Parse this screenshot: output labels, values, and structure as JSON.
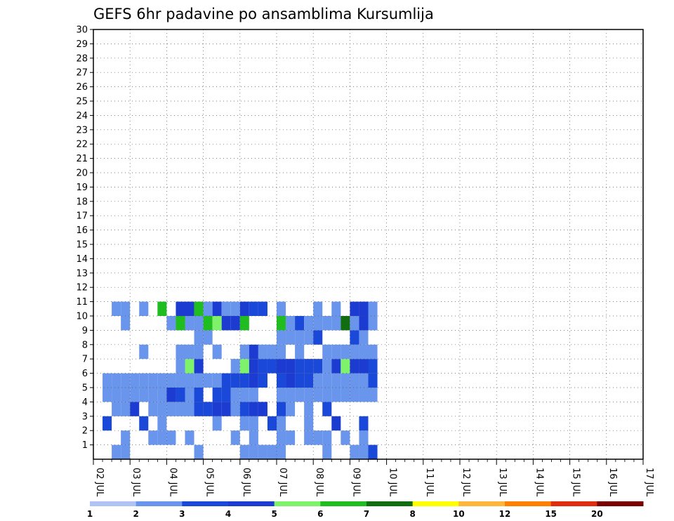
{
  "chart_data": {
    "type": "heatmap",
    "title": "GEFS 6hr padavine po ansamblima Kursumlija",
    "xlabel": "",
    "ylabel": "",
    "x_ticks": [
      "02 JUL",
      "03 JUL",
      "04 JUL",
      "05 JUL",
      "06 JUL",
      "07 JUL",
      "08 JUL",
      "09 JUL",
      "10 JUL",
      "11 JUL",
      "12 JUL",
      "13 JUL",
      "14 JUL",
      "15 JUL",
      "16 JUL",
      "17 JUL"
    ],
    "y_ticks": [
      "1",
      "2",
      "3",
      "4",
      "5",
      "6",
      "7",
      "8",
      "9",
      "10",
      "11",
      "12",
      "13",
      "14",
      "15",
      "16",
      "17",
      "18",
      "19",
      "20",
      "21",
      "22",
      "23",
      "24",
      "25",
      "26",
      "27",
      "28",
      "29",
      "30"
    ],
    "xlim": [
      "02 JUL",
      "17 JUL"
    ],
    "ylim": [
      0,
      30
    ],
    "grid": true,
    "colorbar": {
      "labels": [
        "1",
        "2",
        "3",
        "4",
        "5",
        "6",
        "7",
        "8",
        "10",
        "12",
        "15",
        "20"
      ],
      "colors": [
        "#afc4f4",
        "#6a95ec",
        "#1a48d9",
        "#1c3bd0",
        "#7df26a",
        "#1fbd1f",
        "#106e10",
        "#ffff00",
        "#ffb63a",
        "#ff7f00",
        "#e02d10",
        "#7a0000"
      ]
    },
    "points": [
      [
        2,
        1,
        1
      ],
      [
        3,
        1,
        1
      ],
      [
        11,
        1,
        1
      ],
      [
        16,
        1,
        1
      ],
      [
        17,
        1,
        1
      ],
      [
        18,
        1,
        1
      ],
      [
        19,
        1,
        1
      ],
      [
        20,
        1,
        1
      ],
      [
        25,
        1,
        1
      ],
      [
        28,
        1,
        1
      ],
      [
        29,
        1,
        1
      ],
      [
        30,
        1,
        2
      ],
      [
        3,
        2,
        1
      ],
      [
        6,
        2,
        1
      ],
      [
        7,
        2,
        1
      ],
      [
        8,
        2,
        1
      ],
      [
        10,
        2,
        1
      ],
      [
        15,
        2,
        1
      ],
      [
        17,
        2,
        1
      ],
      [
        20,
        2,
        1
      ],
      [
        21,
        2,
        1
      ],
      [
        23,
        2,
        1
      ],
      [
        24,
        2,
        1
      ],
      [
        25,
        2,
        1
      ],
      [
        27,
        2,
        1
      ],
      [
        29,
        2,
        1
      ],
      [
        1,
        3,
        2
      ],
      [
        5,
        3,
        2
      ],
      [
        7,
        3,
        1
      ],
      [
        13,
        3,
        1
      ],
      [
        16,
        3,
        1
      ],
      [
        17,
        3,
        1
      ],
      [
        19,
        3,
        2
      ],
      [
        20,
        3,
        1
      ],
      [
        23,
        3,
        1
      ],
      [
        26,
        3,
        3
      ],
      [
        29,
        3,
        2
      ],
      [
        2,
        4,
        1
      ],
      [
        3,
        4,
        1
      ],
      [
        4,
        4,
        3
      ],
      [
        6,
        4,
        1
      ],
      [
        7,
        4,
        1
      ],
      [
        8,
        4,
        1
      ],
      [
        9,
        4,
        1
      ],
      [
        10,
        4,
        1
      ],
      [
        11,
        4,
        2
      ],
      [
        12,
        4,
        2
      ],
      [
        13,
        4,
        3
      ],
      [
        14,
        4,
        3
      ],
      [
        15,
        4,
        1
      ],
      [
        16,
        4,
        2
      ],
      [
        17,
        4,
        3
      ],
      [
        18,
        4,
        3
      ],
      [
        20,
        4,
        2
      ],
      [
        21,
        4,
        1
      ],
      [
        23,
        4,
        1
      ],
      [
        25,
        4,
        2
      ],
      [
        1,
        5,
        1
      ],
      [
        2,
        5,
        1
      ],
      [
        3,
        5,
        1
      ],
      [
        4,
        5,
        1
      ],
      [
        5,
        5,
        1
      ],
      [
        6,
        5,
        1
      ],
      [
        7,
        5,
        1
      ],
      [
        8,
        5,
        3
      ],
      [
        9,
        5,
        2
      ],
      [
        10,
        5,
        1
      ],
      [
        11,
        5,
        2
      ],
      [
        13,
        5,
        2
      ],
      [
        14,
        5,
        2
      ],
      [
        15,
        5,
        1
      ],
      [
        16,
        5,
        1
      ],
      [
        17,
        5,
        1
      ],
      [
        20,
        5,
        1
      ],
      [
        21,
        5,
        1
      ],
      [
        22,
        5,
        1
      ],
      [
        23,
        5,
        1
      ],
      [
        24,
        5,
        1
      ],
      [
        25,
        5,
        1
      ],
      [
        26,
        5,
        1
      ],
      [
        27,
        5,
        1
      ],
      [
        28,
        5,
        1
      ],
      [
        29,
        5,
        1
      ],
      [
        30,
        5,
        1
      ],
      [
        1,
        6,
        1
      ],
      [
        2,
        6,
        1
      ],
      [
        3,
        6,
        1
      ],
      [
        4,
        6,
        1
      ],
      [
        5,
        6,
        1
      ],
      [
        6,
        6,
        1
      ],
      [
        7,
        6,
        1
      ],
      [
        8,
        6,
        1
      ],
      [
        9,
        6,
        1
      ],
      [
        10,
        6,
        1
      ],
      [
        11,
        6,
        1
      ],
      [
        12,
        6,
        1
      ],
      [
        13,
        6,
        1
      ],
      [
        14,
        6,
        2
      ],
      [
        15,
        6,
        2
      ],
      [
        16,
        6,
        2
      ],
      [
        17,
        6,
        3
      ],
      [
        18,
        6,
        2
      ],
      [
        20,
        6,
        2
      ],
      [
        21,
        6,
        3
      ],
      [
        22,
        6,
        2
      ],
      [
        23,
        6,
        2
      ],
      [
        24,
        6,
        1
      ],
      [
        25,
        6,
        1
      ],
      [
        26,
        6,
        1
      ],
      [
        27,
        6,
        1
      ],
      [
        28,
        6,
        1
      ],
      [
        29,
        6,
        1
      ],
      [
        30,
        6,
        2
      ],
      [
        9,
        7,
        1
      ],
      [
        10,
        7,
        4
      ],
      [
        11,
        7,
        3
      ],
      [
        15,
        7,
        1
      ],
      [
        16,
        7,
        4
      ],
      [
        17,
        7,
        3
      ],
      [
        18,
        7,
        2
      ],
      [
        19,
        7,
        2
      ],
      [
        20,
        7,
        3
      ],
      [
        21,
        7,
        3
      ],
      [
        22,
        7,
        2
      ],
      [
        23,
        7,
        2
      ],
      [
        24,
        7,
        2
      ],
      [
        25,
        7,
        1
      ],
      [
        26,
        7,
        3
      ],
      [
        27,
        7,
        4
      ],
      [
        28,
        7,
        3
      ],
      [
        29,
        7,
        3
      ],
      [
        30,
        7,
        2
      ],
      [
        5,
        8,
        1
      ],
      [
        9,
        8,
        1
      ],
      [
        10,
        8,
        1
      ],
      [
        11,
        8,
        1
      ],
      [
        13,
        8,
        1
      ],
      [
        16,
        8,
        1
      ],
      [
        17,
        8,
        3
      ],
      [
        18,
        8,
        1
      ],
      [
        19,
        8,
        1
      ],
      [
        20,
        8,
        1
      ],
      [
        22,
        8,
        1
      ],
      [
        25,
        8,
        1
      ],
      [
        26,
        8,
        1
      ],
      [
        27,
        8,
        1
      ],
      [
        28,
        8,
        1
      ],
      [
        29,
        8,
        1
      ],
      [
        30,
        8,
        1
      ],
      [
        11,
        9,
        1
      ],
      [
        12,
        9,
        1
      ],
      [
        20,
        9,
        1
      ],
      [
        21,
        9,
        1
      ],
      [
        22,
        9,
        1
      ],
      [
        23,
        9,
        1
      ],
      [
        24,
        9,
        2
      ],
      [
        28,
        9,
        2
      ],
      [
        29,
        9,
        1
      ],
      [
        3,
        10,
        1
      ],
      [
        8,
        10,
        1
      ],
      [
        9,
        10,
        5
      ],
      [
        10,
        10,
        1
      ],
      [
        11,
        10,
        1
      ],
      [
        12,
        10,
        5
      ],
      [
        13,
        10,
        4
      ],
      [
        14,
        10,
        3
      ],
      [
        15,
        10,
        3
      ],
      [
        16,
        10,
        5
      ],
      [
        20,
        10,
        5
      ],
      [
        21,
        10,
        1
      ],
      [
        22,
        10,
        2
      ],
      [
        23,
        10,
        1
      ],
      [
        24,
        10,
        1
      ],
      [
        25,
        10,
        1
      ],
      [
        26,
        10,
        1
      ],
      [
        27,
        10,
        6
      ],
      [
        28,
        10,
        1
      ],
      [
        29,
        10,
        3
      ],
      [
        30,
        10,
        1
      ],
      [
        2,
        11,
        1
      ],
      [
        3,
        11,
        1
      ],
      [
        5,
        11,
        1
      ],
      [
        7,
        11,
        5
      ],
      [
        9,
        11,
        3
      ],
      [
        10,
        11,
        3
      ],
      [
        11,
        11,
        5
      ],
      [
        12,
        11,
        1
      ],
      [
        13,
        11,
        3
      ],
      [
        14,
        11,
        1
      ],
      [
        15,
        11,
        1
      ],
      [
        16,
        11,
        3
      ],
      [
        17,
        11,
        2
      ],
      [
        18,
        11,
        2
      ],
      [
        20,
        11,
        1
      ],
      [
        24,
        11,
        1
      ],
      [
        26,
        11,
        1
      ],
      [
        28,
        11,
        3
      ],
      [
        29,
        11,
        3
      ],
      [
        30,
        11,
        1
      ]
    ],
    "cells": {
      "02 JUL": "blue",
      "03 JUL": "green"
    }
  }
}
